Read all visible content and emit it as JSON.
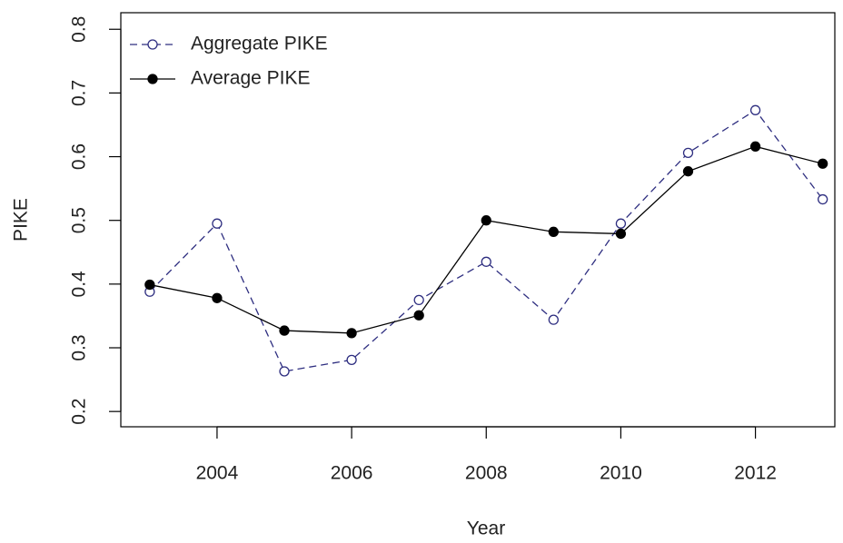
{
  "chart_data": {
    "type": "line",
    "x_label": "Year",
    "y_label": "PIKE",
    "x": [
      2003,
      2004,
      2005,
      2006,
      2007,
      2008,
      2009,
      2010,
      2011,
      2012,
      2013
    ],
    "series": [
      {
        "name": "Aggregate PIKE",
        "color": "#2e2e80",
        "linestyle": "dashed",
        "marker": "open-circle",
        "values": [
          0.388,
          0.495,
          0.263,
          0.281,
          0.375,
          0.435,
          0.344,
          0.495,
          0.606,
          0.673,
          0.533
        ]
      },
      {
        "name": "Average PIKE",
        "color": "#000000",
        "linestyle": "solid",
        "marker": "filled-circle",
        "values": [
          0.399,
          0.378,
          0.327,
          0.323,
          0.351,
          0.5,
          0.482,
          0.479,
          0.577,
          0.616,
          0.589
        ]
      }
    ],
    "xlim": [
      2002.57,
      2013.18
    ],
    "xticks": [
      2004,
      2006,
      2008,
      2010,
      2012
    ],
    "ylim": [
      0.176,
      0.826
    ],
    "yticks": [
      0.2,
      0.3,
      0.4,
      0.5,
      0.6,
      0.7,
      0.8
    ],
    "legend": "top-left"
  }
}
